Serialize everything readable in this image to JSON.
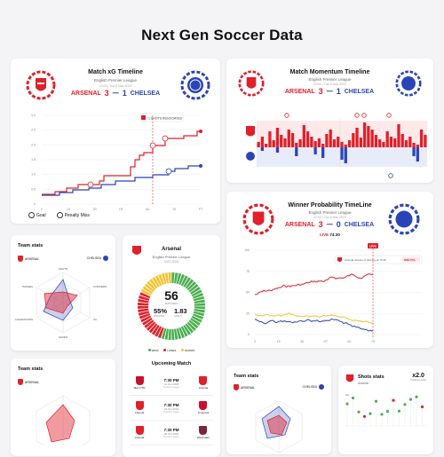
{
  "page": {
    "title": "Next Gen Soccer Data"
  },
  "xg": {
    "title": "Match xG Timeline",
    "league": "English Premier League",
    "date": "22:00 | Tue 8 May 2023",
    "home": "ARSENAL",
    "home_score": "3",
    "sep": "—",
    "away_score": "1",
    "away": "CHELSEA",
    "tooltip": "1 SHOTS ASSOCIATED",
    "legend_goal": "Goal",
    "legend_miss": "Penalty Miss",
    "yticks": [
      "3.0",
      "2.5",
      "2.0",
      "1.5",
      "1.0",
      "0.5",
      "0"
    ],
    "xticks": [
      "0",
      "15",
      "30",
      "HT",
      "60",
      "75",
      "FT"
    ],
    "colors": {
      "home": "#e0202a",
      "away": "#2a44b8"
    }
  },
  "momentum": {
    "title": "Match Momentum Timeline",
    "league": "English Premier League",
    "date": "22:00 | Tue 8 May 2023",
    "home": "ARSENAL",
    "home_score": "3",
    "sep": "—",
    "away_score": "1",
    "away": "CHELSEA"
  },
  "winprob": {
    "title": "Winner Probability TimeLine",
    "league": "English Premier League",
    "date": "22:00 | Tue 8 May 2023",
    "home": "ARSENAL",
    "home_score": "3",
    "sep": "—",
    "away_score": "0",
    "away": "CHELSEA",
    "live": "LIVE",
    "live_time": "74:30",
    "live_tag": "LIVE",
    "banner": "Arsenal chance of winning at 74:30",
    "banner_value": "WIN 75%",
    "yticks": [
      "100",
      "75",
      "50",
      "25",
      "0"
    ],
    "xticks": [
      "0",
      "15",
      "30",
      "HT",
      "60",
      "75"
    ]
  },
  "team_stats_1": {
    "title": "Team stats",
    "home": "ARSENAL",
    "away": "CHELSEA",
    "axes": [
      "SHOTS",
      "CORNERS",
      "xG",
      "SAVES",
      "CLEARANCES",
      "PASSES"
    ]
  },
  "arsenal_card": {
    "team": "Arsenal",
    "league": "English Premier League",
    "season": "2023-2024",
    "matches": "56",
    "matches_label": "MATCHES",
    "win_pct": "55%",
    "win_pct_label": "WIN RATE",
    "avg_goals": "1.83",
    "avg_goals_label": "GOALS",
    "legend": [
      "WINS",
      "LOSES",
      "DRAWS"
    ],
    "upcoming_title": "Upcoming Match",
    "matches_list": [
      {
        "time": "7:30 PM",
        "date": "22 Oct 2023",
        "home": "Man UTD",
        "away": "Arsenal",
        "sub": "Premier League"
      },
      {
        "time": "7:30 PM",
        "date": "24 Oct 2023",
        "home": "Arsenal",
        "away": "Liverpool",
        "sub": "Premier League"
      },
      {
        "time": "7:30 PM",
        "date": "28 Oct 2023",
        "home": "Arsenal",
        "away": "West Ham",
        "sub": "Premier League"
      }
    ]
  },
  "team_stats_2": {
    "title": "Team stats",
    "home": "ARSENAL"
  },
  "team_stats_3": {
    "title": "Team stats",
    "home": "ARSENAL",
    "away": "CHELSEA"
  },
  "shots": {
    "title": "Shots stats",
    "team": "Arsenal",
    "badge": "x2.0",
    "badge_sub": "Predicted Goals",
    "xg_label": "xG"
  },
  "win_donut": {
    "wins": 55,
    "loses": 27,
    "draws": 18
  },
  "colors": {
    "red": "#e0202a",
    "blue": "#2a44b8",
    "green": "#4caf50",
    "yellow": "#f2c230"
  }
}
